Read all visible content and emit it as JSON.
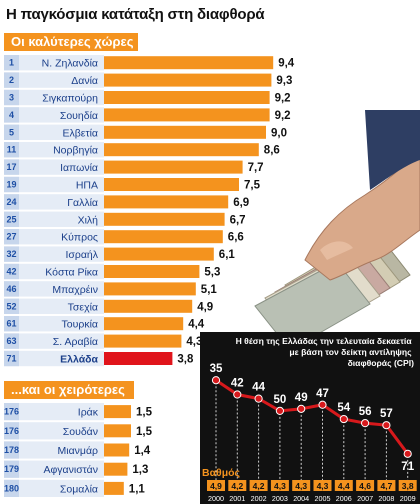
{
  "title": "Η παγκόσμια κατάταξη στη διαφθορά",
  "best_heading": "Οι καλύτερες χώρες",
  "worst_heading": "...και οι χειρότερες",
  "inset_title_lines": [
    "Η θέση της Ελλάδας την τελευταία δεκαετία",
    "με βάση τον δείκτη αντίληψης",
    "διαφθοράς (CPI)"
  ],
  "chart_data": [
    {
      "type": "bar",
      "orientation": "horizontal",
      "title": "Οι καλύτερες χώρες",
      "ranks": [
        "1",
        "2",
        "3",
        "4",
        "5",
        "11",
        "17",
        "19",
        "24",
        "25",
        "27",
        "32",
        "42",
        "46",
        "52",
        "61",
        "63",
        "71"
      ],
      "categories": [
        "Ν. Ζηλανδία",
        "Δανία",
        "Σιγκαπούρη",
        "Σουηδία",
        "Ελβετία",
        "Νορβηγία",
        "Ιαπωνία",
        "ΗΠΑ",
        "Γαλλία",
        "Χιλή",
        "Κύπρος",
        "Ισραήλ",
        "Κόστα Ρίκα",
        "Μπαχρέιν",
        "Τσεχία",
        "Τουρκία",
        "Σ. Αραβία",
        "Ελλάδα"
      ],
      "values": [
        9.4,
        9.3,
        9.2,
        9.2,
        9.0,
        8.6,
        7.7,
        7.5,
        6.9,
        6.7,
        6.6,
        6.1,
        5.3,
        5.1,
        4.9,
        4.4,
        4.3,
        3.8
      ],
      "value_labels": [
        "9,4",
        "9,3",
        "9,2",
        "9,2",
        "9,0",
        "8,6",
        "7,7",
        "7,5",
        "6,9",
        "6,7",
        "6,6",
        "6,1",
        "5,3",
        "5,1",
        "4,9",
        "4,4",
        "4,3",
        "3,8"
      ],
      "highlight": "Ελλάδα",
      "colors": {
        "bar": "#f4931e",
        "highlight": "#e0141b",
        "rank_box": "#c7d6ec",
        "row": "#e5ecf6"
      }
    },
    {
      "type": "bar",
      "orientation": "horizontal",
      "title": "...και οι χειρότερες",
      "ranks": [
        "176",
        "176",
        "178",
        "179",
        "180"
      ],
      "categories": [
        "Ιράκ",
        "Σουδάν",
        "Μιανμάρ",
        "Αφγανιστάν",
        "Σομαλία"
      ],
      "values": [
        1.5,
        1.5,
        1.4,
        1.3,
        1.1
      ],
      "value_labels": [
        "1,5",
        "1,5",
        "1,4",
        "1,3",
        "1,1"
      ],
      "colors": {
        "bar": "#f4931e"
      }
    },
    {
      "type": "line",
      "title": "Η θέση της Ελλάδας την τελευταία δεκαετία με βάση τον δείκτη αντίληψης διαφθοράς (CPI)",
      "x": [
        "2000",
        "2001",
        "2002",
        "2003",
        "2004",
        "2005",
        "2006",
        "2007",
        "2008",
        "2009"
      ],
      "series": [
        {
          "values": [
            35,
            42,
            44,
            50,
            49,
            47,
            54,
            56,
            57,
            71
          ],
          "labels": [
            "35",
            "42",
            "44",
            "50",
            "49",
            "47",
            "54",
            "56",
            "57",
            "71"
          ]
        }
      ],
      "score_label": "Βαθμός",
      "scores": [
        "4,9",
        "4,2",
        "4,2",
        "4,3",
        "4,3",
        "4,3",
        "4,4",
        "4,6",
        "4,7",
        "3,8"
      ],
      "y_inverted": true,
      "ylim": [
        30,
        75
      ],
      "colors": {
        "line": "#d7191c",
        "background": "#111111",
        "score_box": "#f4931e",
        "score_label": "#f4931e"
      }
    }
  ]
}
